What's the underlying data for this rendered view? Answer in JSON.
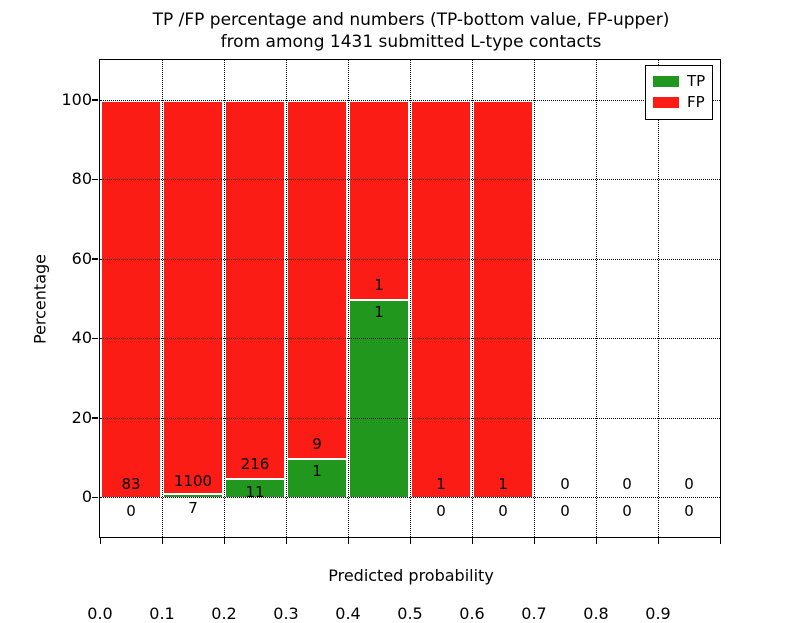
{
  "chart_data": {
    "type": "bar",
    "title_line1": "TP /FP percentage and numbers (TP-bottom value, FP-upper)",
    "title_line2": "from among 1431 submitted L-type contacts",
    "xlabel": "Predicted probability",
    "ylabel": "Percentage",
    "total_submitted": 1431,
    "xlim": [
      0.0,
      1.0
    ],
    "ylim": [
      -10,
      110
    ],
    "x_tick_labels": [
      "0.0",
      "0.1",
      "0.2",
      "0.3",
      "0.4",
      "0.5",
      "0.6",
      "0.7",
      "0.8",
      "0.9"
    ],
    "y_tick_values": [
      0,
      20,
      40,
      60,
      80,
      100
    ],
    "grid": "dotted, drawn above bars",
    "legend": {
      "position": "upper right",
      "entries": [
        {
          "label": "TP",
          "color": "#21981d"
        },
        {
          "label": "FP",
          "color": "#fc1c16"
        }
      ]
    },
    "bins": [
      {
        "range": [
          0.0,
          0.1
        ],
        "tp": 0,
        "fp": 83
      },
      {
        "range": [
          0.1,
          0.2
        ],
        "tp": 7,
        "fp": 1100
      },
      {
        "range": [
          0.2,
          0.3
        ],
        "tp": 11,
        "fp": 216
      },
      {
        "range": [
          0.3,
          0.4
        ],
        "tp": 1,
        "fp": 9
      },
      {
        "range": [
          0.4,
          0.5
        ],
        "tp": 1,
        "fp": 1
      },
      {
        "range": [
          0.5,
          0.6
        ],
        "tp": 0,
        "fp": 1
      },
      {
        "range": [
          0.6,
          0.7
        ],
        "tp": 0,
        "fp": 1
      },
      {
        "range": [
          0.7,
          0.8
        ],
        "tp": 0,
        "fp": 0
      },
      {
        "range": [
          0.8,
          0.9
        ],
        "tp": 0,
        "fp": 0
      },
      {
        "range": [
          0.9,
          1.0
        ],
        "tp": 0,
        "fp": 0
      }
    ],
    "bar_semantics": "bars show TP% (green, bottom) and FP% (red, top) stacked to 100% per bin; annotation numbers are raw counts (FP count above boundary, TP count below)",
    "colors": {
      "tp": "#21981d",
      "fp": "#fc1c16",
      "bar_edge": "#ffffff",
      "grid": "#000000",
      "background": "#ffffff",
      "text": "#000000"
    }
  }
}
